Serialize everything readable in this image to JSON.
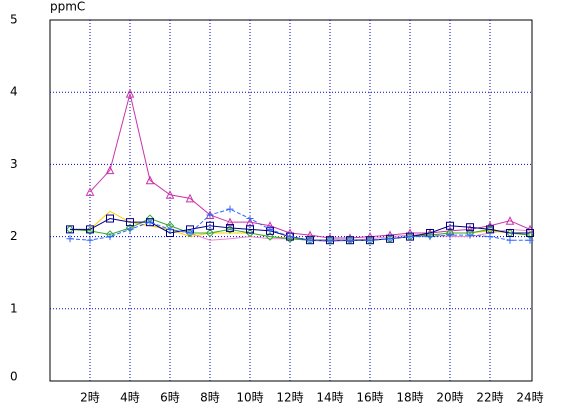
{
  "chart_data": {
    "type": "line",
    "y_label": "ppmC",
    "categories": [
      null,
      "2時",
      null,
      "4時",
      null,
      "6時",
      null,
      "8時",
      null,
      "10時",
      null,
      "12時",
      null,
      "14時",
      null,
      "16時",
      null,
      "18時",
      null,
      "20時",
      null,
      "22時",
      null,
      "24時"
    ],
    "ylim": [
      0,
      5
    ],
    "yticks": [
      0,
      1,
      2,
      3,
      4,
      5
    ],
    "grid": true,
    "series": [
      {
        "color": "#cc33aa",
        "marker": "triangle",
        "dash": false,
        "values": [
          null,
          2.62,
          2.92,
          3.98,
          2.78,
          2.58,
          2.53,
          2.3,
          2.2,
          2.2,
          2.15,
          2.05,
          2.02,
          1.98,
          1.98,
          2.0,
          2.02,
          2.05,
          2.05,
          2.08,
          2.1,
          2.15,
          2.22,
          2.1
        ]
      },
      {
        "color": "#ee88cc",
        "marker": "none",
        "dash": false,
        "values": [
          null,
          null,
          null,
          2.2,
          2.15,
          2.1,
          2.05,
          1.95,
          1.97,
          2.0,
          1.97,
          1.97,
          1.95,
          1.93,
          1.95,
          1.97,
          2.0,
          2.02,
          2.03,
          2.0,
          2.0,
          2.05,
          2.1,
          2.08
        ]
      },
      {
        "color": "#ffcc00",
        "marker": "none",
        "dash": false,
        "values": [
          2.1,
          2.1,
          2.35,
          2.2,
          2.15,
          2.1,
          2.0,
          2.05,
          2.05,
          2.05,
          2.0,
          1.98,
          1.95,
          1.95,
          1.95,
          1.95,
          1.97,
          2.0,
          2.02,
          2.05,
          2.05,
          2.08,
          2.05,
          2.02
        ]
      },
      {
        "color": "#33aa33",
        "marker": "diamond",
        "dash": false,
        "values": [
          2.1,
          2.08,
          2.03,
          2.12,
          2.25,
          2.15,
          2.05,
          2.05,
          2.1,
          2.05,
          2.0,
          1.97,
          1.95,
          1.95,
          1.95,
          1.95,
          1.97,
          2.0,
          2.02,
          2.05,
          2.05,
          2.1,
          2.05,
          2.02
        ]
      },
      {
        "color": "#000088",
        "marker": "square",
        "dash": false,
        "values": [
          2.1,
          2.1,
          2.25,
          2.2,
          2.2,
          2.05,
          2.1,
          2.15,
          2.12,
          2.1,
          2.08,
          2.0,
          1.95,
          1.95,
          1.95,
          1.95,
          1.97,
          2.0,
          2.05,
          2.15,
          2.13,
          2.1,
          2.05,
          2.05
        ]
      },
      {
        "color": "#3366ff",
        "marker": "plus",
        "dash": true,
        "values": [
          1.97,
          1.95,
          2.0,
          2.1,
          2.2,
          2.1,
          2.05,
          2.3,
          2.38,
          2.25,
          2.1,
          2.0,
          1.95,
          1.95,
          1.95,
          1.95,
          1.97,
          2.0,
          2.0,
          2.02,
          2.02,
          2.0,
          1.95,
          1.95
        ]
      }
    ]
  }
}
